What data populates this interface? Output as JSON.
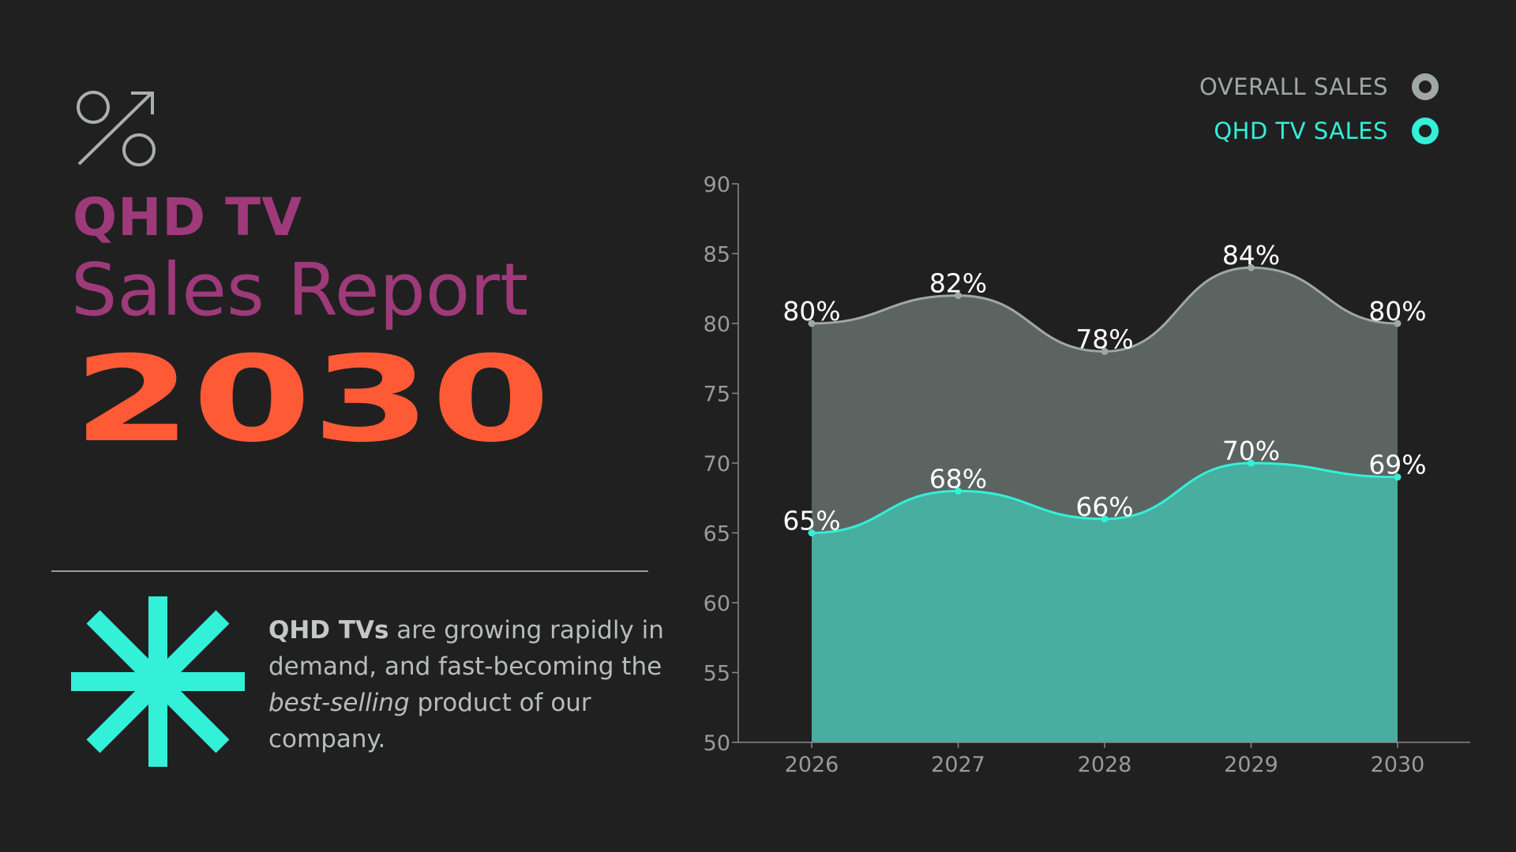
{
  "colors": {
    "background": "#202020",
    "title_magenta": "#9e3a7a",
    "title_orange": "#ff5a36",
    "accent_cyan": "#33f0d8",
    "overall_line": "#a0a8a6",
    "overall_fill": "#5c6462",
    "qhd_fill": "#48ae9f",
    "icon_gray": "#a9b0ae"
  },
  "header": {
    "line1": "QHD TV",
    "line2": "Sales Report",
    "line3": "2030",
    "icon": "percent-arrow-icon"
  },
  "description": {
    "bold_lead": "QHD TVs",
    "part1": " are growing rapidly in demand, and fast-becoming the ",
    "italic": "best-selling",
    "part2": " product of our company.",
    "icon": "asterisk-icon"
  },
  "legend": {
    "overall_label": "OVERALL SALES",
    "qhd_label": "QHD TV SALES"
  },
  "chart_data": {
    "type": "area",
    "categories": [
      "2026",
      "2027",
      "2028",
      "2029",
      "2030"
    ],
    "series": [
      {
        "name": "OVERALL SALES",
        "values": [
          80,
          82,
          78,
          84,
          80
        ],
        "labels": [
          "80%",
          "82%",
          "78%",
          "84%",
          "80%"
        ]
      },
      {
        "name": "QHD TV SALES",
        "values": [
          65,
          68,
          66,
          70,
          69
        ],
        "labels": [
          "65%",
          "68%",
          "66%",
          "70%",
          "69%"
        ]
      }
    ],
    "ylim": [
      50,
      90
    ],
    "yticks": [
      "50",
      "55",
      "60",
      "65",
      "70",
      "75",
      "80",
      "85",
      "90"
    ],
    "legend_position": "top-right",
    "smooth": true,
    "grid": false
  }
}
